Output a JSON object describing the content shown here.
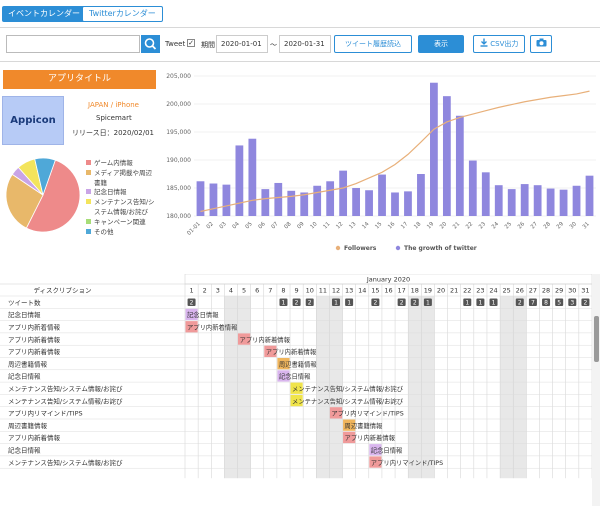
{
  "tabs": [
    {
      "label": "イベントカレンダー",
      "active": true
    },
    {
      "label": "Twitterカレンダー",
      "active": false
    }
  ],
  "toolbar": {
    "search_value": "",
    "tweet_label": "Tweet",
    "tweet_checked": true,
    "period_label": "期間",
    "date_from": "2020-01-01",
    "tilde": "〜",
    "date_to": "2020-01-31",
    "import_label": "ツイート履歴読込",
    "show_label": "表示",
    "csv_label": "CSV出力",
    "icons": {
      "search": "search-icon",
      "check": "check-icon",
      "download": "download-icon",
      "camera": "camera-icon"
    },
    "accent": "#2c8ed6"
  },
  "app": {
    "title": "アプリタイトル",
    "icon_text": "Appicon",
    "platform": "JAPAN / iPhone",
    "company": "Spicemart",
    "release": "リリース日：2020/02/01",
    "title_color": "#f0892b"
  },
  "pie_legend": [
    {
      "label": "ゲーム内情報",
      "color": "#ee8a8a"
    },
    {
      "label": "メディア掲載や周辺",
      "color": "#e8b86a"
    },
    {
      "label": "書籍",
      "color": ""
    },
    {
      "label": "記念日情報",
      "color": "#c9a4e6"
    },
    {
      "label": "メンテナンス告知/シ",
      "color": "#f3e45c"
    },
    {
      "label": "ステム情報/お詫び",
      "color": ""
    },
    {
      "label": "キャンペーン関連",
      "color": "#a7dd78"
    },
    {
      "label": "その他",
      "color": "#4fa8d8"
    }
  ],
  "chart_data": [
    {
      "type": "pie",
      "slices": [
        {
          "name": "ゲーム内情報",
          "value": 52,
          "color": "#ee8a8a"
        },
        {
          "name": "メディア掲載や周辺書籍",
          "value": 27,
          "color": "#e8b86a"
        },
        {
          "name": "記念日情報",
          "value": 4,
          "color": "#c9a4e6"
        },
        {
          "name": "メンテナンス告知/システム情報/お詫び",
          "value": 8,
          "color": "#f3e45c"
        },
        {
          "name": "キャンペーン関連",
          "value": 0,
          "color": "#a7dd78"
        },
        {
          "name": "その他",
          "value": 9,
          "color": "#4fa8d8"
        }
      ]
    },
    {
      "type": "bar+line",
      "categories": [
        "01-01",
        "01-02",
        "01-03",
        "01-04",
        "01-05",
        "01-06",
        "01-07",
        "01-08",
        "01-09",
        "01-10",
        "01-11",
        "01-12",
        "01-13",
        "01-14",
        "01-15",
        "01-16",
        "01-17",
        "01-18",
        "01-19",
        "01-20",
        "01-21",
        "01-22",
        "01-23",
        "01-24",
        "01-25",
        "01-26",
        "01-27",
        "01-28",
        "01-29",
        "01-30",
        "01-31"
      ],
      "xtick_labels": [
        "01-01",
        "02",
        "03",
        "04",
        "05",
        "06",
        "07",
        "08",
        "09",
        "10",
        "11",
        "12",
        "13",
        "14",
        "15",
        "16",
        "17",
        "18",
        "19",
        "20",
        "21",
        "22",
        "23",
        "24",
        "25",
        "26",
        "27",
        "28",
        "29",
        "30",
        "31"
      ],
      "ylim": [
        180000,
        205000
      ],
      "yticks": [
        "180,000",
        "185,000",
        "190,000",
        "195,000",
        "200,000",
        "205,000"
      ],
      "ytick_values": [
        180000,
        185000,
        190000,
        195000,
        200000,
        205000
      ],
      "series": [
        {
          "name": "Followers",
          "type": "line",
          "color": "#e8b07a",
          "values": [
            180800,
            181300,
            181800,
            182300,
            182800,
            183100,
            183300,
            183500,
            183800,
            184200,
            184600,
            185000,
            185800,
            186800,
            187800,
            189200,
            191000,
            193200,
            195500,
            196800,
            197600,
            198200,
            198800,
            199400,
            199900,
            200400,
            200800,
            201200,
            201500,
            201800,
            202300
          ]
        },
        {
          "name": "The growth of twitter",
          "type": "bar",
          "color": "#8f87de",
          "values": [
            186200,
            185800,
            185600,
            192600,
            193800,
            184800,
            185900,
            184500,
            184200,
            185400,
            186200,
            188100,
            185000,
            184600,
            187400,
            184200,
            184400,
            187500,
            203800,
            201400,
            197900,
            189900,
            187800,
            185500,
            184800,
            185700,
            185500,
            184900,
            184700,
            185400,
            187200
          ]
        }
      ]
    }
  ],
  "table": {
    "month_label": "January 2020",
    "desc_header": "ディスクリプション",
    "days": [
      "1",
      "2",
      "3",
      "4",
      "5",
      "6",
      "7",
      "8",
      "9",
      "10",
      "11",
      "12",
      "13",
      "14",
      "15",
      "16",
      "17",
      "18",
      "19",
      "20",
      "21",
      "22",
      "23",
      "24",
      "25",
      "26",
      "27",
      "28",
      "29",
      "30",
      "31"
    ],
    "weekend_cols": [
      4,
      5,
      11,
      12,
      18,
      19,
      25,
      26
    ],
    "tweet_row_label": "ツイート数",
    "tweet_counts": [
      {
        "day": 1,
        "n": "2"
      },
      {
        "day": 8,
        "n": "1"
      },
      {
        "day": 9,
        "n": "2"
      },
      {
        "day": 10,
        "n": "2"
      },
      {
        "day": 12,
        "n": "1"
      },
      {
        "day": 13,
        "n": "1"
      },
      {
        "day": 15,
        "n": "2"
      },
      {
        "day": 17,
        "n": "2"
      },
      {
        "day": 18,
        "n": "2"
      },
      {
        "day": 19,
        "n": "1"
      },
      {
        "day": 22,
        "n": "1"
      },
      {
        "day": 23,
        "n": "1"
      },
      {
        "day": 24,
        "n": "1"
      },
      {
        "day": 26,
        "n": "2"
      },
      {
        "day": 27,
        "n": "7"
      },
      {
        "day": 28,
        "n": "8"
      },
      {
        "day": 29,
        "n": "5"
      },
      {
        "day": 30,
        "n": "3"
      },
      {
        "day": 31,
        "n": "2"
      }
    ],
    "rows": [
      {
        "label": "記念日情報",
        "day": 1,
        "text": "記念日情報",
        "color": "#d9b5ee"
      },
      {
        "label": "アプリ内新着情報",
        "day": 1,
        "text": "アプリ内新着情報",
        "color": "#f09a9a"
      },
      {
        "label": "アプリ内新着情報",
        "day": 5,
        "text": "アプリ内新着情報",
        "color": "#f09a9a"
      },
      {
        "label": "アプリ内新着情報",
        "day": 7,
        "text": "アプリ内新着情報",
        "color": "#f09a9a"
      },
      {
        "label": "周辺書籍情報",
        "day": 8,
        "text": "周辺書籍情報",
        "color": "#f0b55c"
      },
      {
        "label": "記念日情報",
        "day": 8,
        "text": "記念日情報",
        "color": "#d9b5ee"
      },
      {
        "label": "メンテナンス告知/システム情報/お詫び",
        "day": 9,
        "text": "メンテナンス告知/システム情報/お詫び",
        "color": "#f0e44a"
      },
      {
        "label": "メンテナンス告知/システム情報/お詫び",
        "day": 9,
        "text": "メンテナンス告知/システム情報/お詫び",
        "color": "#f0e44a"
      },
      {
        "label": "アプリ内リマインド/TIPS",
        "day": 12,
        "text": "アプリ内リマインド/TIPS",
        "color": "#f09a9a"
      },
      {
        "label": "周辺書籍情報",
        "day": 13,
        "text": "周辺書籍情報",
        "color": "#f0b55c"
      },
      {
        "label": "アプリ内新着情報",
        "day": 13,
        "text": "アプリ内新着情報",
        "color": "#f09a9a"
      },
      {
        "label": "記念日情報",
        "day": 15,
        "text": "記念日情報",
        "color": "#d9b5ee"
      },
      {
        "label": "メンテナンス告知/システム情報/お詫び",
        "day": 15,
        "text": "アプリ内リマインド/TIPS",
        "color": "#f09a9a"
      }
    ]
  }
}
